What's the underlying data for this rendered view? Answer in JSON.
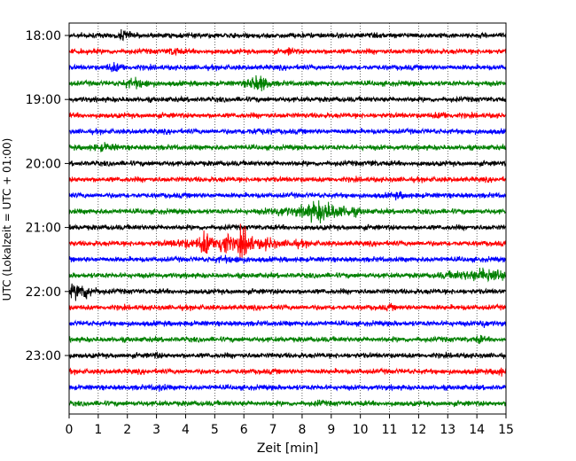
{
  "chart_data": {
    "type": "line",
    "title": "",
    "xlabel": "Zeit  [min]",
    "ylabel": "UTC (Lokalzeit = UTC + 01:00)",
    "xlim": [
      0,
      15
    ],
    "x_ticks": [
      "0",
      "1",
      "2",
      "3",
      "4",
      "5",
      "6",
      "7",
      "8",
      "9",
      "10",
      "11",
      "12",
      "13",
      "14",
      "15"
    ],
    "y_ticks": [
      {
        "label": "18:00",
        "trace_index": 0
      },
      {
        "label": "19:00",
        "trace_index": 4
      },
      {
        "label": "20:00",
        "trace_index": 8
      },
      {
        "label": "21:00",
        "trace_index": 12
      },
      {
        "label": "22:00",
        "trace_index": 16
      },
      {
        "label": "23:00",
        "trace_index": 20
      }
    ],
    "trace_interval_min": 15,
    "trace_colors": [
      "#000000",
      "#ff0000",
      "#0000ff",
      "#008000"
    ],
    "traces": [
      {
        "start": "18:00",
        "events": [
          {
            "t": 1.9,
            "a": 1.8,
            "w": 0.15
          }
        ]
      },
      {
        "start": "18:15",
        "events": [
          {
            "t": 3.6,
            "a": 1.6,
            "w": 0.15
          },
          {
            "t": 7.6,
            "a": 1.5,
            "w": 0.1
          }
        ]
      },
      {
        "start": "18:30",
        "events": [
          {
            "t": 1.6,
            "a": 1.7,
            "w": 0.2
          }
        ]
      },
      {
        "start": "18:45",
        "events": [
          {
            "t": 2.3,
            "a": 1.8,
            "w": 0.3
          },
          {
            "t": 6.5,
            "a": 2.5,
            "w": 0.25
          }
        ]
      },
      {
        "start": "19:00",
        "events": []
      },
      {
        "start": "19:15",
        "events": [
          {
            "t": 12.8,
            "a": 1.4,
            "w": 0.2
          }
        ]
      },
      {
        "start": "19:30",
        "events": [
          {
            "t": 6.5,
            "a": 1.3,
            "w": 0.3
          }
        ]
      },
      {
        "start": "19:45",
        "events": [
          {
            "t": 1.2,
            "a": 1.5,
            "w": 0.3
          }
        ]
      },
      {
        "start": "20:00",
        "events": [
          {
            "t": 10.4,
            "a": 1.3,
            "w": 0.1
          }
        ]
      },
      {
        "start": "20:15",
        "events": []
      },
      {
        "start": "20:30",
        "events": [
          {
            "t": 11.3,
            "a": 1.4,
            "w": 0.2
          }
        ]
      },
      {
        "start": "20:45",
        "events": [
          {
            "t": 7.2,
            "a": 1.7,
            "w": 0.3
          },
          {
            "t": 8.6,
            "a": 3.0,
            "w": 0.45
          },
          {
            "t": 9.6,
            "a": 1.7,
            "w": 0.3
          }
        ]
      },
      {
        "start": "21:00",
        "events": []
      },
      {
        "start": "21:15",
        "events": [
          {
            "t": 4.0,
            "a": 1.6,
            "w": 0.4
          },
          {
            "t": 4.7,
            "a": 3.6,
            "w": 0.15
          },
          {
            "t": 5.3,
            "a": 4.0,
            "w": 0.15
          },
          {
            "t": 6.0,
            "a": 4.2,
            "w": 0.2
          },
          {
            "t": 6.8,
            "a": 2.0,
            "w": 0.25
          },
          {
            "t": 7.8,
            "a": 1.4,
            "w": 0.3
          }
        ]
      },
      {
        "start": "21:30",
        "events": [
          {
            "t": 5.5,
            "a": 1.4,
            "w": 0.4
          }
        ]
      },
      {
        "start": "21:45",
        "events": [
          {
            "t": 13.5,
            "a": 1.6,
            "w": 0.5
          },
          {
            "t": 14.5,
            "a": 2.4,
            "w": 0.35
          }
        ]
      },
      {
        "start": "22:00",
        "events": [
          {
            "t": 0.4,
            "a": 2.6,
            "w": 0.3
          }
        ]
      },
      {
        "start": "22:15",
        "events": [
          {
            "t": 11.0,
            "a": 1.3,
            "w": 0.1
          }
        ]
      },
      {
        "start": "22:30",
        "events": [
          {
            "t": 14.2,
            "a": 1.7,
            "w": 0.1
          }
        ]
      },
      {
        "start": "22:45",
        "events": [
          {
            "t": 14.1,
            "a": 1.6,
            "w": 0.1
          }
        ]
      },
      {
        "start": "23:00",
        "events": [
          {
            "t": 3.0,
            "a": 1.3,
            "w": 0.1
          }
        ]
      },
      {
        "start": "23:15",
        "events": [
          {
            "t": 14.8,
            "a": 1.5,
            "w": 0.15
          }
        ]
      },
      {
        "start": "23:30",
        "events": [
          {
            "t": 3.1,
            "a": 1.4,
            "w": 0.15
          }
        ]
      },
      {
        "start": "23:45",
        "events": [
          {
            "t": 8.6,
            "a": 1.3,
            "w": 0.1
          }
        ]
      }
    ],
    "grid": {
      "x_dotted": true
    }
  }
}
